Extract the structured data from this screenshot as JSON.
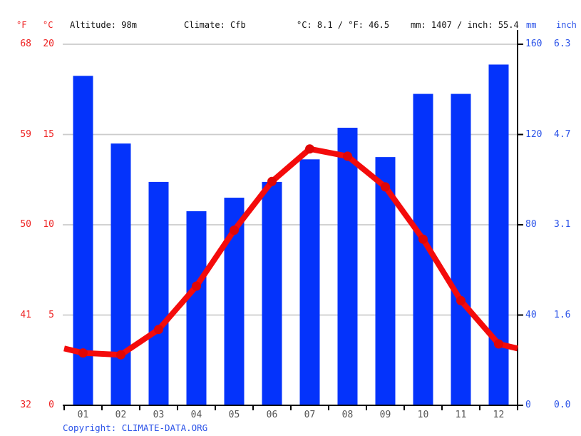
{
  "header": {
    "f_label": "°F",
    "c_label": "°C",
    "altitude": "Altitude: 98m",
    "climate": "Climate: Cfb",
    "temp_stats": "°C: 8.1 / °F: 46.5",
    "precip_stats": "mm: 1407 / inch: 55.4",
    "mm_label": "mm",
    "inch_label": "inch"
  },
  "axis_labels": {
    "left_f": [
      "68",
      "59",
      "50",
      "41",
      "32"
    ],
    "left_c": [
      "20",
      "15",
      "10",
      "5",
      "0"
    ],
    "right_mm": [
      "160",
      "120",
      "80",
      "40",
      "0"
    ],
    "right_inch": [
      "6.3",
      "4.7",
      "3.1",
      "1.6",
      "0.0"
    ]
  },
  "chart_data": {
    "type": "bar",
    "subtype": "climate-combo-bar-line",
    "categories": [
      "01",
      "02",
      "03",
      "04",
      "05",
      "06",
      "07",
      "08",
      "09",
      "10",
      "11",
      "12"
    ],
    "series": [
      {
        "name": "precipitation",
        "type": "bar",
        "unit": "mm",
        "values": [
          146,
          116,
          99,
          86,
          92,
          99,
          109,
          123,
          110,
          138,
          138,
          151
        ]
      },
      {
        "name": "temperature",
        "type": "line",
        "unit": "°C",
        "values": [
          2.9,
          2.8,
          4.2,
          6.6,
          9.7,
          12.4,
          14.2,
          13.8,
          12.1,
          9.2,
          5.8,
          3.4
        ]
      }
    ],
    "title": "",
    "xlabel": "",
    "ylabel_left": "°C / °F",
    "ylabel_right": "mm / inch",
    "left_axis": {
      "unit": "°C",
      "min": 0,
      "max": 20,
      "ticks": [
        0,
        5,
        10,
        15,
        20
      ]
    },
    "left_axis_secondary": {
      "unit": "°F",
      "ticks": [
        32,
        41,
        50,
        59,
        68
      ]
    },
    "right_axis": {
      "unit": "mm",
      "min": 0,
      "max": 160,
      "ticks": [
        0,
        40,
        80,
        120,
        160
      ]
    },
    "right_axis_secondary": {
      "unit": "inch",
      "ticks": [
        0.0,
        1.6,
        3.1,
        4.7,
        6.3
      ]
    },
    "grid": true,
    "legend": false
  },
  "footer": {
    "copyright_prefix": "Copyright: ",
    "copyright_link": "CLIMATE-DATA.ORG"
  },
  "colors": {
    "bar": "#0433fb",
    "line": "#f40b0b",
    "dot": "#e00606",
    "grid": "#cccccc",
    "axis": "#000000",
    "red_label": "#ee2222",
    "blue_label": "#2a52e8",
    "month_label": "#555555",
    "header_text": "#111111"
  }
}
